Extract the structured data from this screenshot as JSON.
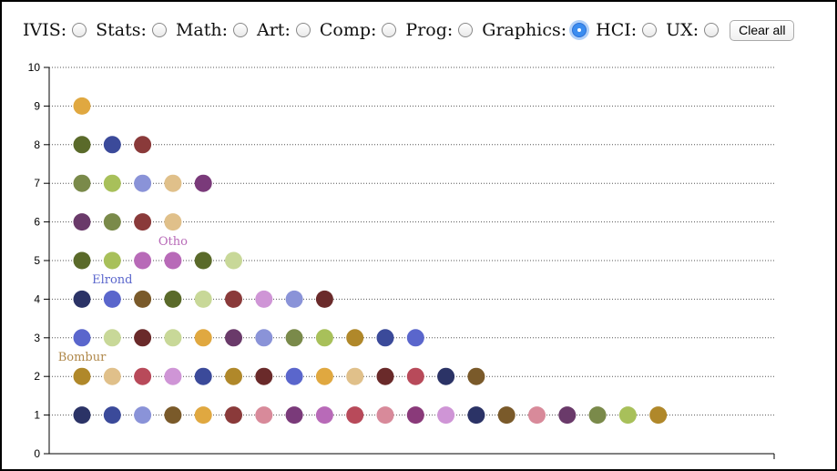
{
  "controls": {
    "options": [
      {
        "label": "IVIS:",
        "checked": false
      },
      {
        "label": "Stats:",
        "checked": false
      },
      {
        "label": "Math:",
        "checked": false
      },
      {
        "label": "Art:",
        "checked": false
      },
      {
        "label": "Comp:",
        "checked": false
      },
      {
        "label": "Prog:",
        "checked": false
      },
      {
        "label": "Graphics:",
        "checked": true
      },
      {
        "label": "HCI:",
        "checked": false
      },
      {
        "label": "UX:",
        "checked": false
      }
    ],
    "clear_label": "Clear all"
  },
  "chart_data": {
    "type": "scatter",
    "ylim": [
      0,
      10
    ],
    "yticks": [
      "0",
      "1",
      "2",
      "3",
      "4",
      "5",
      "6",
      "7",
      "8",
      "9",
      "10"
    ],
    "grid": "horizontal dotted",
    "rows": [
      {
        "y": 1,
        "colors": [
          "#2b3366",
          "#3b4a9a",
          "#8a93d8",
          "#7a5a2a",
          "#e0a840",
          "#8a3a3a",
          "#d88a9a",
          "#7a3a7a",
          "#b86ab8",
          "#b84a5a",
          "#d88a9a",
          "#8a3a7a",
          "#cf95d6",
          "#2b3366",
          "#7a5a2a",
          "#d88a9a",
          "#6a3a6a",
          "#7a8a4a",
          "#a8c05a",
          "#b0882a"
        ]
      },
      {
        "y": 2,
        "colors": [
          "#b0882a",
          "#e0c08a",
          "#b84a5a",
          "#cf95d6",
          "#3b4a9a",
          "#b0882a",
          "#6a2a2a",
          "#5a66cc",
          "#e0a840",
          "#e0c08a",
          "#6a2a2a",
          "#b84a5a",
          "#2b3366",
          "#7a5a2a"
        ]
      },
      {
        "y": 3,
        "colors": [
          "#5a66cc",
          "#c8d898",
          "#6a2a2a",
          "#c8d898",
          "#e0a840",
          "#6a3a6a",
          "#8a93d8",
          "#7a8a4a",
          "#a8c05a",
          "#b0882a",
          "#3b4a9a",
          "#5a66cc"
        ]
      },
      {
        "y": 4,
        "colors": [
          "#2b3366",
          "#5a66cc",
          "#7a5a2a",
          "#5a6a2a",
          "#c8d898",
          "#8a3a3a",
          "#cf95d6",
          "#8a93d8",
          "#6a2a2a"
        ]
      },
      {
        "y": 5,
        "colors": [
          "#5a6a2a",
          "#a8c05a",
          "#b86ab8",
          "#b86ab8",
          "#5a6a2a",
          "#c8d898"
        ]
      },
      {
        "y": 6,
        "colors": [
          "#6a3a6a",
          "#7a8a4a",
          "#8a3a3a",
          "#e0c08a"
        ]
      },
      {
        "y": 7,
        "colors": [
          "#7a8a4a",
          "#a8c05a",
          "#8a93d8",
          "#e0c08a",
          "#7a3a7a"
        ]
      },
      {
        "y": 8,
        "colors": [
          "#5a6a2a",
          "#3b4a9a",
          "#8a3a3a"
        ]
      },
      {
        "y": 9,
        "colors": [
          "#e0a840"
        ]
      }
    ],
    "annotations": [
      {
        "text": "Bombur",
        "y": 2.5,
        "index": 0,
        "color": "#b0884a"
      },
      {
        "text": "Elrond",
        "y": 4.5,
        "index": 1,
        "color": "#5a66cc"
      },
      {
        "text": "Otho",
        "y": 5.5,
        "index": 3,
        "color": "#b86ab8"
      }
    ]
  }
}
